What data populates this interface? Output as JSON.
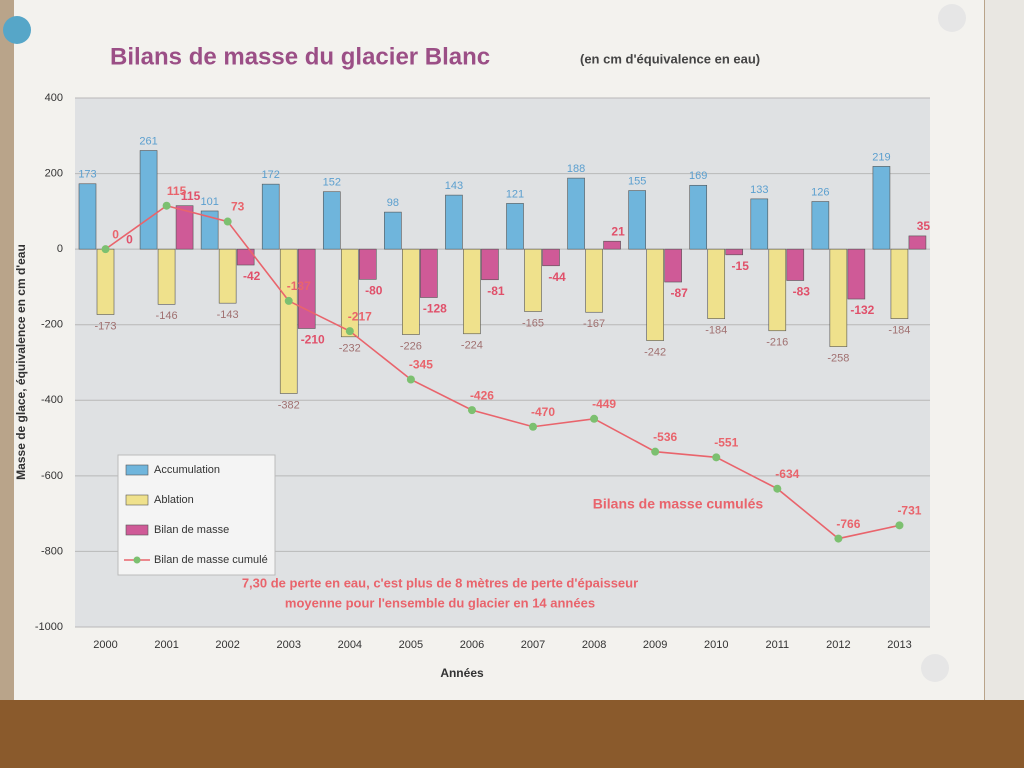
{
  "chart_data": {
    "type": "bar",
    "title": "Bilans de masse du glacier Blanc",
    "subtitle": "(en cm d'équivalence en eau)",
    "y_label": "Masse de glace, équivalence en cm d'eau",
    "x_label": "Années",
    "annotation": "Bilans de masse cumulés",
    "note": [
      "7,30 de perte en eau, c'est plus de 8 mètres de perte d'épaisseur",
      "moyenne pour l'ensemble du glacier en 14 années"
    ],
    "categories": [
      "2000",
      "2001",
      "2002",
      "2003",
      "2004",
      "2005",
      "2006",
      "2007",
      "2008",
      "2009",
      "2010",
      "2011",
      "2012",
      "2013"
    ],
    "series": [
      {
        "name": "Accumulation",
        "color": "#6fb5dc",
        "type": "bar",
        "values": [
          173,
          261,
          101,
          172,
          152,
          98,
          143,
          121,
          188,
          155,
          169,
          133,
          126,
          219
        ]
      },
      {
        "name": "Ablation",
        "color": "#efe18c",
        "type": "bar",
        "values": [
          -173,
          -146,
          -143,
          -382,
          -232,
          -226,
          -224,
          -165,
          -167,
          -242,
          -184,
          -216,
          -258,
          -184
        ]
      },
      {
        "name": "Bilan de masse",
        "color": "#cf5a97",
        "type": "bar",
        "values": [
          0,
          115,
          -42,
          -210,
          -80,
          -128,
          -81,
          -44,
          21,
          -87,
          -15,
          -83,
          -132,
          35
        ]
      },
      {
        "name": "Bilan de masse cumulé",
        "color": "#e9646c",
        "marker_color": "#7cc070",
        "type": "line",
        "values": [
          0,
          115,
          73,
          -137,
          -217,
          -345,
          -426,
          -470,
          -449,
          -536,
          -551,
          -634,
          -766,
          -731
        ]
      }
    ],
    "ylim": [
      -1000,
      400
    ],
    "yticks": [
      -1000,
      -800,
      -600,
      -400,
      -200,
      0,
      200,
      400
    ],
    "grid": true,
    "legend": "lower-left"
  }
}
